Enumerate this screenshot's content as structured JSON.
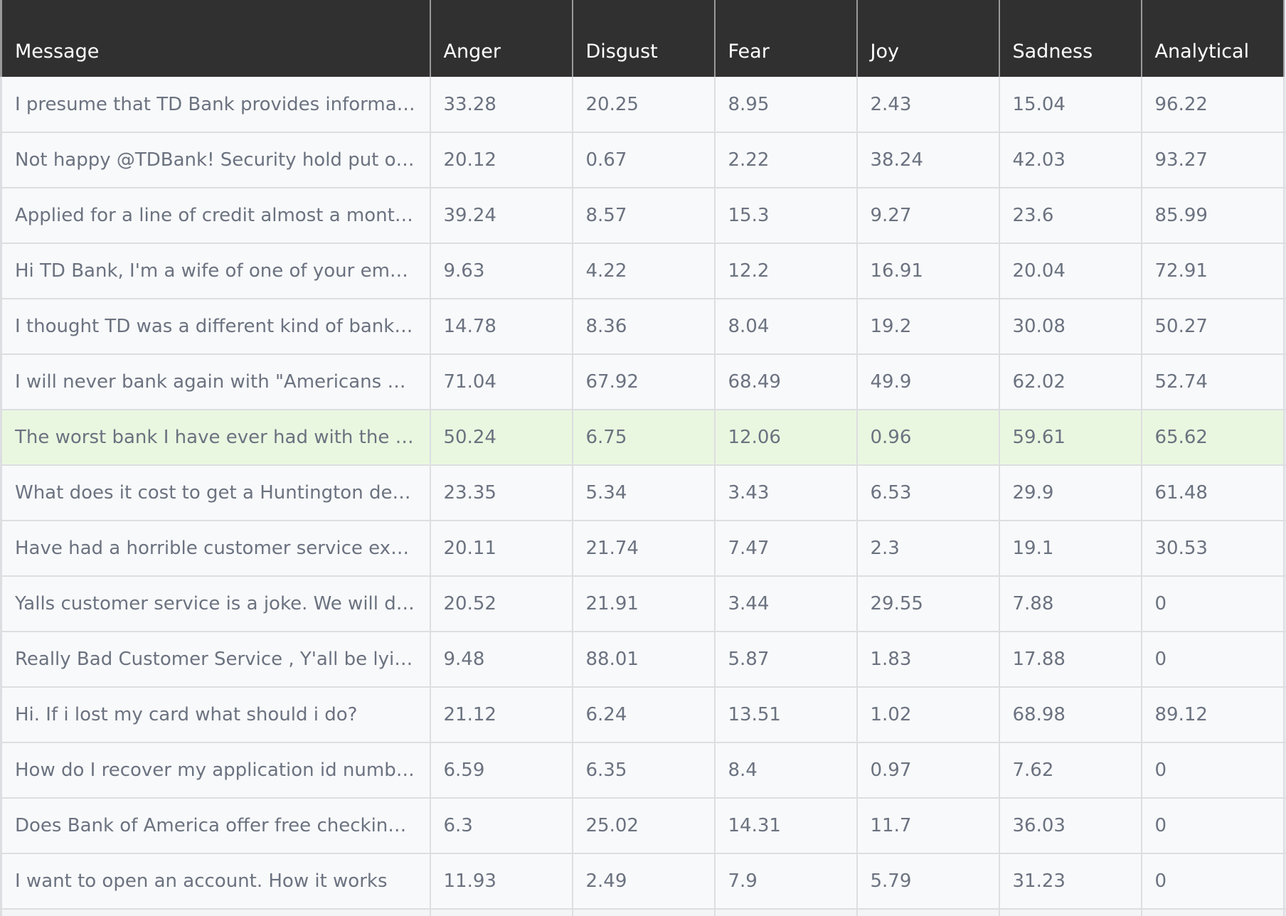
{
  "table": {
    "columns": [
      "Message",
      "Anger",
      "Disgust",
      "Fear",
      "Joy",
      "Sadness",
      "Analytical"
    ],
    "rows": [
      {
        "message": "I presume that TD Bank provides information ...",
        "anger": "33.28",
        "disgust": "20.25",
        "fear": "8.95",
        "joy": "2.43",
        "sadness": "15.04",
        "analytical": "96.22"
      },
      {
        "message": "Not happy @TDBank! Security hold put on car...",
        "anger": "20.12",
        "disgust": "0.67",
        "fear": "2.22",
        "joy": "38.24",
        "sadness": "42.03",
        "analytical": "93.27"
      },
      {
        "message": "Applied for a line of credit almost a month ag...",
        "anger": "39.24",
        "disgust": "8.57",
        "fear": "15.3",
        "joy": "9.27",
        "sadness": "23.6",
        "analytical": "85.99"
      },
      {
        "message": "Hi TD Bank, I'm a wife of one of your employee...",
        "anger": "9.63",
        "disgust": "4.22",
        "fear": "12.2",
        "joy": "16.91",
        "sadness": "20.04",
        "analytical": "72.91"
      },
      {
        "message": "I thought TD was a different kind of bank. I gu...",
        "anger": "14.78",
        "disgust": "8.36",
        "fear": "8.04",
        "joy": "19.2",
        "sadness": "30.08",
        "analytical": "50.27"
      },
      {
        "message": "I will never bank again with \"Americans most ...",
        "anger": "71.04",
        "disgust": "67.92",
        "fear": "68.49",
        "joy": "49.9",
        "sadness": "62.02",
        "analytical": "52.74"
      },
      {
        "message": "The worst bank I have ever had with the most ...",
        "anger": "50.24",
        "disgust": "6.75",
        "fear": "12.06",
        "joy": "0.96",
        "sadness": "59.61",
        "analytical": "65.62",
        "highlighted": true
      },
      {
        "message": "What does it cost to get a Huntington debit ca...",
        "anger": "23.35",
        "disgust": "5.34",
        "fear": "3.43",
        "joy": "6.53",
        "sadness": "29.9",
        "analytical": "61.48"
      },
      {
        "message": "Have had a horrible customer service experien...",
        "anger": "20.11",
        "disgust": "21.74",
        "fear": "7.47",
        "joy": "2.3",
        "sadness": "19.1",
        "analytical": "30.53"
      },
      {
        "message": "Yalls customer service is a joke. We will definit...",
        "anger": "20.52",
        "disgust": "21.91",
        "fear": "3.44",
        "joy": "29.55",
        "sadness": "7.88",
        "analytical": "0"
      },
      {
        "message": "Really Bad Customer Service , Y'all be lying to...",
        "anger": "9.48",
        "disgust": "88.01",
        "fear": "5.87",
        "joy": "1.83",
        "sadness": "17.88",
        "analytical": "0"
      },
      {
        "message": "Hi. If i lost my card what should i do?",
        "anger": "21.12",
        "disgust": "6.24",
        "fear": "13.51",
        "joy": "1.02",
        "sadness": "68.98",
        "analytical": "89.12"
      },
      {
        "message": "How do I recover my application id number?",
        "anger": "6.59",
        "disgust": "6.35",
        "fear": "8.4",
        "joy": "0.97",
        "sadness": "7.62",
        "analytical": "0"
      },
      {
        "message": "Does Bank of America offer free checking to m...",
        "anger": "6.3",
        "disgust": "25.02",
        "fear": "14.31",
        "joy": "11.7",
        "sadness": "36.03",
        "analytical": "0"
      },
      {
        "message": "I want to open an account. How it works",
        "anger": "11.93",
        "disgust": "2.49",
        "fear": "7.9",
        "joy": "5.79",
        "sadness": "31.23",
        "analytical": "0"
      }
    ]
  },
  "colors": {
    "header_bg": "#303030",
    "row_bg": "#f8f9fa",
    "highlight_bg": "#eaf7e0",
    "text": "#6b7280"
  }
}
